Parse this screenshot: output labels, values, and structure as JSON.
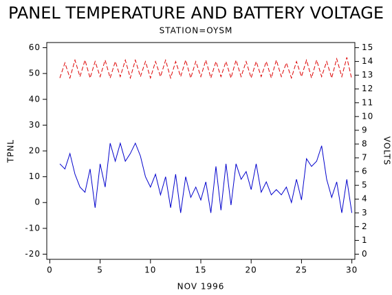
{
  "chart_data": {
    "type": "line",
    "title": "PANEL TEMPERATURE AND BATTERY VOLTAGE",
    "subtitle": "STATION=OYSM",
    "x_label": "NOV 1996",
    "y_label": "TPNL",
    "y2_label": "VOLTS",
    "x": [
      1,
      1.5,
      2,
      2.5,
      3,
      3.5,
      4,
      4.5,
      5,
      5.5,
      6,
      6.5,
      7,
      7.5,
      8,
      8.5,
      9,
      9.5,
      10,
      10.5,
      11,
      11.5,
      12,
      12.5,
      13,
      13.5,
      14,
      14.5,
      15,
      15.5,
      16,
      16.5,
      17,
      17.5,
      18,
      18.5,
      19,
      19.5,
      20,
      20.5,
      21,
      21.5,
      22,
      22.5,
      23,
      23.5,
      24,
      24.5,
      25,
      25.5,
      26,
      26.5,
      27,
      27.5,
      28,
      28.5,
      29,
      29.5,
      30
    ],
    "series": [
      {
        "name": "TPNL",
        "color": "#0000cc",
        "axis": "y",
        "values": [
          15,
          13,
          19,
          11,
          6,
          4,
          13,
          -2,
          15,
          6,
          23,
          16,
          23,
          16,
          19,
          23,
          18,
          10,
          6,
          11,
          3,
          10,
          -2,
          11,
          -4,
          10,
          2,
          6,
          1,
          8,
          -4,
          14,
          -3,
          15,
          -1,
          15,
          9,
          12,
          5,
          15,
          4,
          8,
          3,
          5,
          3,
          6,
          0,
          9,
          1,
          17,
          14,
          16,
          22,
          9,
          2,
          8,
          -4,
          9,
          -4
        ]
      },
      {
        "name": "VOLTS",
        "color": "#dd0000",
        "axis": "y2",
        "dashed": true,
        "values": [
          12.8,
          13.9,
          12.8,
          14.1,
          12.9,
          14.1,
          12.8,
          14.0,
          12.9,
          14.1,
          12.8,
          14.0,
          12.9,
          14.1,
          12.8,
          14.1,
          12.9,
          14.0,
          12.8,
          14.0,
          12.9,
          14.1,
          12.8,
          14.0,
          12.9,
          14.1,
          12.8,
          14.0,
          12.9,
          14.1,
          12.8,
          14.0,
          12.9,
          14.0,
          12.8,
          14.1,
          12.9,
          14.0,
          12.8,
          14.0,
          12.9,
          14.0,
          12.8,
          14.1,
          12.9,
          13.9,
          12.8,
          14.0,
          12.9,
          14.1,
          12.8,
          14.1,
          12.9,
          14.0,
          12.8,
          14.2,
          12.9,
          14.3,
          12.7
        ]
      }
    ],
    "xlim": [
      -0.3,
      30.3
    ],
    "xticks": [
      0,
      5,
      10,
      15,
      20,
      25,
      30
    ],
    "ylim": [
      -22,
      62
    ],
    "yticks": [
      -20,
      -10,
      0,
      10,
      20,
      30,
      40,
      50,
      60
    ],
    "y2lim": [
      -0.375,
      15.375
    ],
    "y2ticks": [
      0,
      1,
      2,
      3,
      4,
      5,
      6,
      7,
      8,
      9,
      10,
      11,
      12,
      13,
      14,
      15
    ]
  }
}
